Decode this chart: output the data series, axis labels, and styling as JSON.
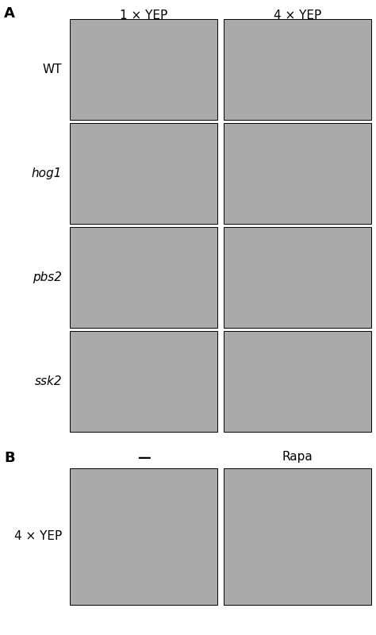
{
  "panel_A_label": "A",
  "panel_B_label": "B",
  "col_labels_A": [
    "1 × YEP",
    "4 × YEP"
  ],
  "row_labels_A": [
    "WT",
    "hog1",
    "pbs2",
    "ssk2"
  ],
  "row_labels_A_italic": [
    false,
    true,
    true,
    true
  ],
  "col_labels_B": [
    "—",
    "Rapa"
  ],
  "row_labels_B": [
    "4 × YEP"
  ],
  "bg_color": "#a8a8a8",
  "figure_bg": "#ffffff",
  "panel_label_fontsize": 13,
  "col_label_fontsize": 11,
  "row_label_fontsize": 11,
  "img_gray": "#aaaaaa",
  "border_color": "#000000",
  "border_lw": 0.7
}
